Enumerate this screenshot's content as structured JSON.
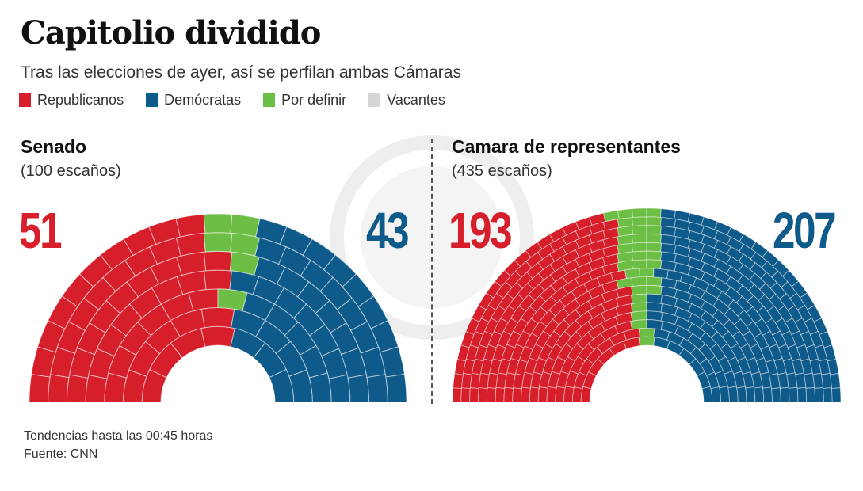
{
  "header": {
    "title": "Capitolio dividido",
    "subtitle": "Tras las elecciones de ayer, así se perfilan ambas Cámaras"
  },
  "legend": [
    {
      "label": "Republicanos",
      "color": "#d71f2b"
    },
    {
      "label": "Demócratas",
      "color": "#0e5a8a"
    },
    {
      "label": "Por definir",
      "color": "#6dbe45"
    },
    {
      "label": "Vacantes",
      "color": "#d6d6d6"
    }
  ],
  "chart_data": [
    {
      "type": "parliament",
      "title": "Senado",
      "subtitle": "(100 escaños)",
      "total": 100,
      "series": [
        {
          "name": "Republicanos",
          "value": 51,
          "label": "51"
        },
        {
          "name": "Por definir",
          "value": 6
        },
        {
          "name": "Demócratas",
          "value": 43,
          "label": "43"
        },
        {
          "name": "Vacantes",
          "value": 0
        }
      ]
    },
    {
      "type": "parliament",
      "title": "Camara de representantes",
      "subtitle": "(435 escaños)",
      "total": 435,
      "series": [
        {
          "name": "Republicanos",
          "value": 193,
          "label": "193"
        },
        {
          "name": "Por definir",
          "value": 35
        },
        {
          "name": "Demócratas",
          "value": 207,
          "label": "207"
        },
        {
          "name": "Vacantes",
          "value": 0
        }
      ]
    }
  ],
  "footer": {
    "note": "Tendencias hasta las 00:45 horas",
    "source": "Fuente: CNN"
  }
}
